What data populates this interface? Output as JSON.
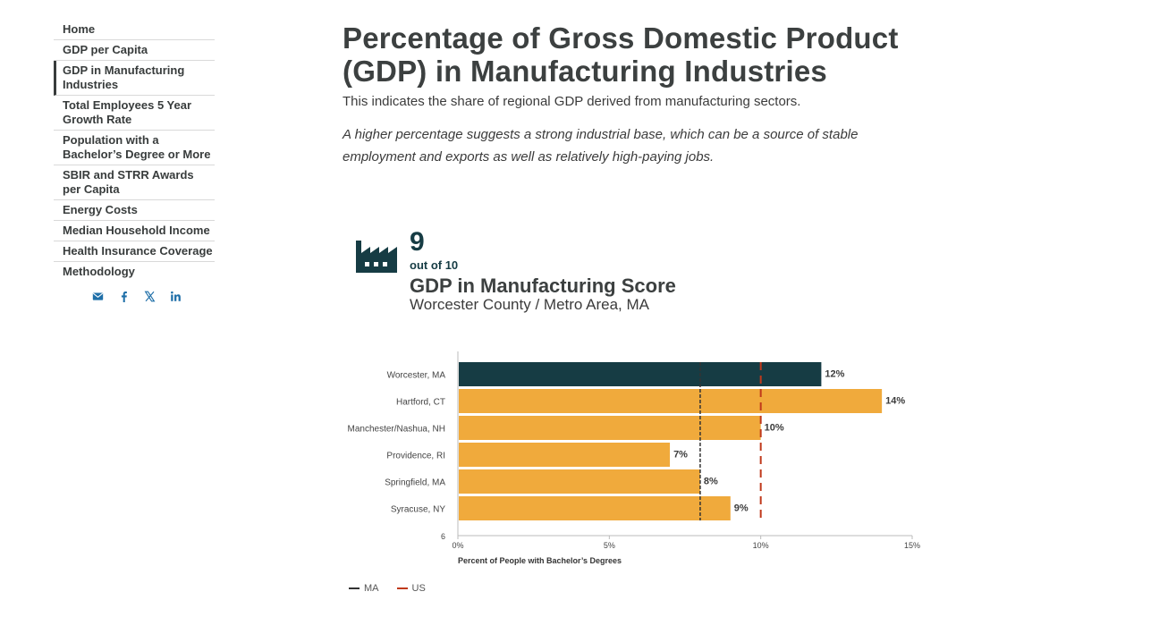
{
  "sidebar": {
    "items": [
      {
        "label": "Home"
      },
      {
        "label": "GDP per Capita"
      },
      {
        "label": "GDP in Manufacturing Industries"
      },
      {
        "label": "Total Employees 5 Year Growth Rate"
      },
      {
        "label": "Population with a Bachelor’s Degree or More"
      },
      {
        "label": "SBIR and STRR Awards per Capita"
      },
      {
        "label": "Energy Costs"
      },
      {
        "label": "Median Household Income"
      },
      {
        "label": "Health Insurance Coverage"
      },
      {
        "label": "Methodology"
      }
    ],
    "active_index": 2,
    "socials": [
      "email-icon",
      "facebook-icon",
      "x-icon",
      "linkedin-icon"
    ]
  },
  "main": {
    "title": "Percentage of Gross Domestic Product (GDP) in Manufacturing Industries",
    "subtitle": "This indicates the share of regional GDP derived from manufacturing sectors.",
    "note": "A higher percentage suggests a strong industrial base, which can be a source of stable employment and exports as well as relatively high-paying jobs."
  },
  "score": {
    "icon": "factory-icon",
    "value": "9",
    "out_of": "out of 10",
    "label": "GDP in Manufacturing Score",
    "region": "Worcester County / Metro Area, MA"
  },
  "colors": {
    "highlight": "#163c44",
    "bar": "#f0aa3c",
    "ma_line": "#333333",
    "us_line": "#c0391b",
    "text": "#3b3b3b"
  },
  "chart_data": {
    "type": "bar",
    "orientation": "horizontal",
    "categories": [
      "Worcester, MA",
      "Hartford, CT",
      "Manchester/Nashua, NH",
      "Providence, RI",
      "Springfield, MA",
      "Syracuse, NY"
    ],
    "values": [
      12,
      14,
      10,
      7,
      8,
      9
    ],
    "value_labels": [
      "12%",
      "14%",
      "10%",
      "7%",
      "8%",
      "9%"
    ],
    "highlight_index": 0,
    "y_extra_label": "6",
    "xlabel": "Percent of People with Bachelor’s Degrees",
    "xlim": [
      0,
      15
    ],
    "xticks": [
      0,
      5,
      10,
      15
    ],
    "xtick_labels": [
      "0%",
      "5%",
      "10%",
      "15%"
    ],
    "reference_lines": [
      {
        "name": "MA",
        "value": 8
      },
      {
        "name": "US",
        "value": 10
      }
    ],
    "legend": [
      "MA",
      "US"
    ]
  }
}
